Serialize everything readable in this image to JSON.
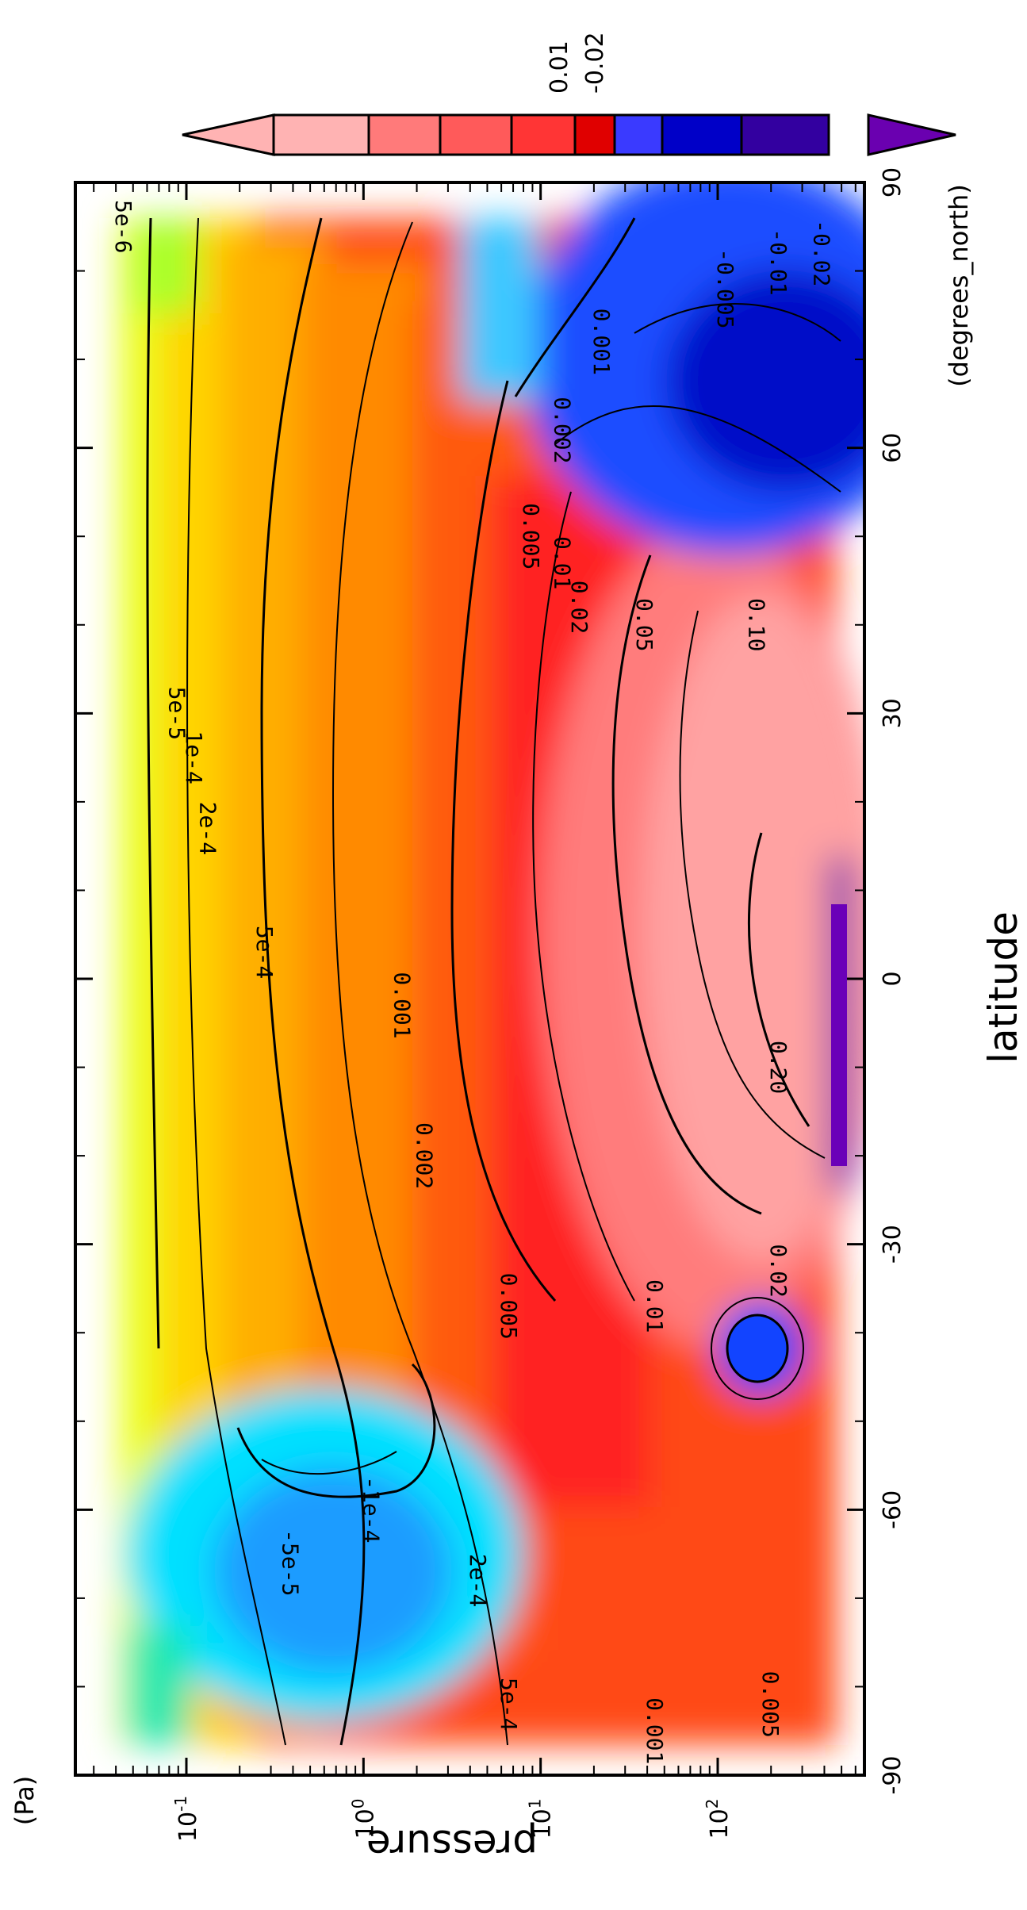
{
  "chart_data": {
    "type": "heatmap",
    "title": "",
    "xlabel": "latitude",
    "xunits": "(degrees_north)",
    "ylabel": "pressure",
    "yunits": "(Pa)",
    "xlim": [
      -90,
      90
    ],
    "x_ticks": [
      "-90",
      "-60",
      "-30",
      "0",
      "30",
      "60",
      "90"
    ],
    "y_scale": "log",
    "y_ticks": [
      "10^-1",
      "10^0",
      "10^1",
      "10^2"
    ],
    "orientation": "rotated 90 degrees clockwise",
    "colorbar": {
      "labels": [
        "0.01",
        "-0.02"
      ],
      "colors": [
        "#ffb3b3",
        "#ff7a7a",
        "#ff5a5a",
        "#ff3535",
        "#e00000",
        "#3a3aff",
        "#0000c8",
        "#3300a0",
        "#6a00b0"
      ]
    },
    "contour_labels": [
      {
        "text": "5e-6",
        "lat": 85,
        "p": 0.04
      },
      {
        "text": "0.001",
        "lat": 72,
        "p": 20
      },
      {
        "text": "0.002",
        "lat": 62,
        "p": 12
      },
      {
        "text": "-0.005",
        "lat": 78,
        "p": 100
      },
      {
        "text": "-0.01",
        "lat": 81,
        "p": 200
      },
      {
        "text": "-0.02",
        "lat": 82,
        "p": 350
      },
      {
        "text": "0.005",
        "lat": 50,
        "p": 8
      },
      {
        "text": "0.01",
        "lat": 47,
        "p": 12
      },
      {
        "text": "0.02",
        "lat": 42,
        "p": 15
      },
      {
        "text": "0.05",
        "lat": 40,
        "p": 35
      },
      {
        "text": "0.10",
        "lat": 40,
        "p": 150
      },
      {
        "text": "5e-5",
        "lat": 30,
        "p": 0.08
      },
      {
        "text": "1e-4",
        "lat": 25,
        "p": 0.1
      },
      {
        "text": "2e-4",
        "lat": 17,
        "p": 0.12
      },
      {
        "text": "5e-4",
        "lat": 3,
        "p": 0.25
      },
      {
        "text": "0.001",
        "lat": -3,
        "p": 1.5
      },
      {
        "text": "0.002",
        "lat": -20,
        "p": 2
      },
      {
        "text": "0.20",
        "lat": -10,
        "p": 200
      },
      {
        "text": "0.005",
        "lat": -37,
        "p": 6
      },
      {
        "text": "0.01",
        "lat": -37,
        "p": 40
      },
      {
        "text": "0.02",
        "lat": -33,
        "p": 200
      },
      {
        "text": "-5e-5",
        "lat": -66,
        "p": 0.35
      },
      {
        "text": "-1e-4",
        "lat": -60,
        "p": 1
      },
      {
        "text": "2e-4",
        "lat": -68,
        "p": 4
      },
      {
        "text": "5e-4",
        "lat": -82,
        "p": 6
      },
      {
        "text": "0.001",
        "lat": -85,
        "p": 40
      },
      {
        "text": "0.005",
        "lat": -82,
        "p": 180
      }
    ]
  }
}
